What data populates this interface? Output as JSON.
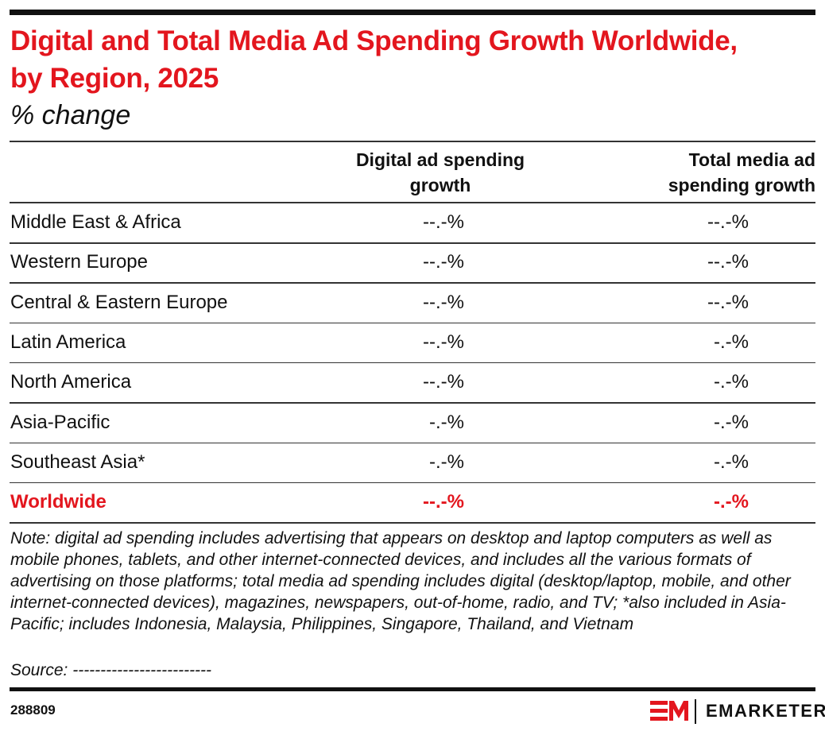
{
  "header": {
    "title": "Digital and Total Media Ad Spending Growth Worldwide, by Region, 2025",
    "subtitle": "% change"
  },
  "table": {
    "columns": [
      "",
      "Digital ad spending growth",
      "Total media ad spending growth"
    ],
    "rows": [
      [
        "Middle East & Africa",
        "--.-%",
        "--.-%"
      ],
      [
        "Western Europe",
        "--.-%",
        "--.-%"
      ],
      [
        "Central & Eastern Europe",
        "--.-%",
        "--.-%"
      ],
      [
        "Latin America",
        "--.-%",
        "-.-%"
      ],
      [
        "North America",
        "--.-%",
        "-.-%"
      ],
      [
        "Asia-Pacific",
        "-.-%",
        "-.-%"
      ],
      [
        "Southeast Asia*",
        "-.-%",
        "-.-%"
      ],
      [
        "Worldwide",
        "--.-%",
        "-.-%"
      ]
    ]
  },
  "footer": {
    "note": "Note: digital ad spending includes advertising that appears on desktop and laptop computers as well as mobile phones, tablets, and other internet-connected devices, and includes all the various formats of advertising on those platforms; total media ad spending includes digital (desktop/laptop, mobile, and other internet-connected devices), magazines, newspapers, out-of-home, radio, and TV; *also included in Asia-Pacific; includes Indonesia, Malaysia, Philippines, Singapore, Thailand, and Vietnam",
    "source": "Source: -------------------------",
    "id": "288809",
    "brand": "EMARKETER"
  }
}
